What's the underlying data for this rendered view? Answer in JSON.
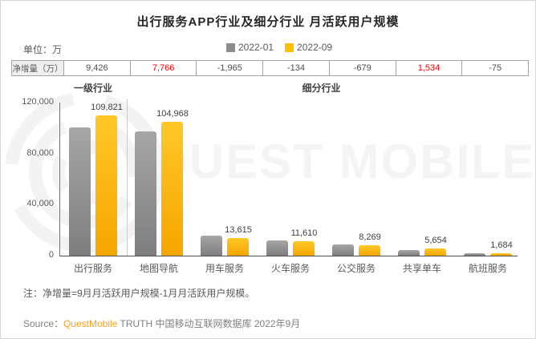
{
  "title": "出行服务APP行业及细分行业 月活跃用户规模",
  "unit_label": "单位：万",
  "legend": [
    {
      "label": "2022-01",
      "color": "#8c8c8c"
    },
    {
      "label": "2022-09",
      "color": "#ffc000"
    }
  ],
  "net_increase_table": {
    "header": "净增量（万）",
    "values": [
      {
        "text": "9,426",
        "highlight": false
      },
      {
        "text": "7,766",
        "highlight": true
      },
      {
        "text": "-1,965",
        "highlight": false
      },
      {
        "text": "-134",
        "highlight": false
      },
      {
        "text": "-679",
        "highlight": false
      },
      {
        "text": "1,534",
        "highlight": true
      },
      {
        "text": "-75",
        "highlight": false
      }
    ],
    "highlight_color": "#ff0000"
  },
  "section_labels": {
    "primary": "一级行业",
    "sub": "细分行业"
  },
  "chart_data": {
    "type": "bar",
    "categories": [
      "出行服务",
      "地图导航",
      "用车服务",
      "火车服务",
      "公交服务",
      "共享单车",
      "航班服务"
    ],
    "series": [
      {
        "name": "2022-01",
        "color": "#8c8c8c",
        "values": [
          100395,
          97202,
          15580,
          11744,
          8948,
          4120,
          1759
        ]
      },
      {
        "name": "2022-09",
        "color": "#ffc000",
        "values": [
          109821,
          104968,
          13615,
          11610,
          8269,
          5654,
          1684
        ]
      }
    ],
    "data_labels": [
      "109,821",
      "104,968",
      "13,615",
      "11,610",
      "8,269",
      "5,654",
      "1,684"
    ],
    "title": "出行服务APP行业及细分行业 月活跃用户规模",
    "xlabel": "",
    "ylabel": "单位：万",
    "ylim": [
      0,
      120000
    ],
    "y_ticks": [
      {
        "value": 0,
        "label": "0"
      },
      {
        "value": 40000,
        "label": "40,000"
      },
      {
        "value": 80000,
        "label": "80,000"
      },
      {
        "value": 120000,
        "label": "120,000"
      }
    ],
    "grid": false,
    "legend_position": "top",
    "group_divider_after_category": "出行服务"
  },
  "watermark": {
    "text": "QUEST MOBILE"
  },
  "note": "注：净增量=9月月活跃用户规模-1月月活跃用户规模。",
  "source": {
    "prefix": "Source：",
    "brand": "QuestMobile",
    "suffix": " TRUTH 中国移动互联网数据库 2022年9月",
    "brand_color": "#f9a11b"
  }
}
